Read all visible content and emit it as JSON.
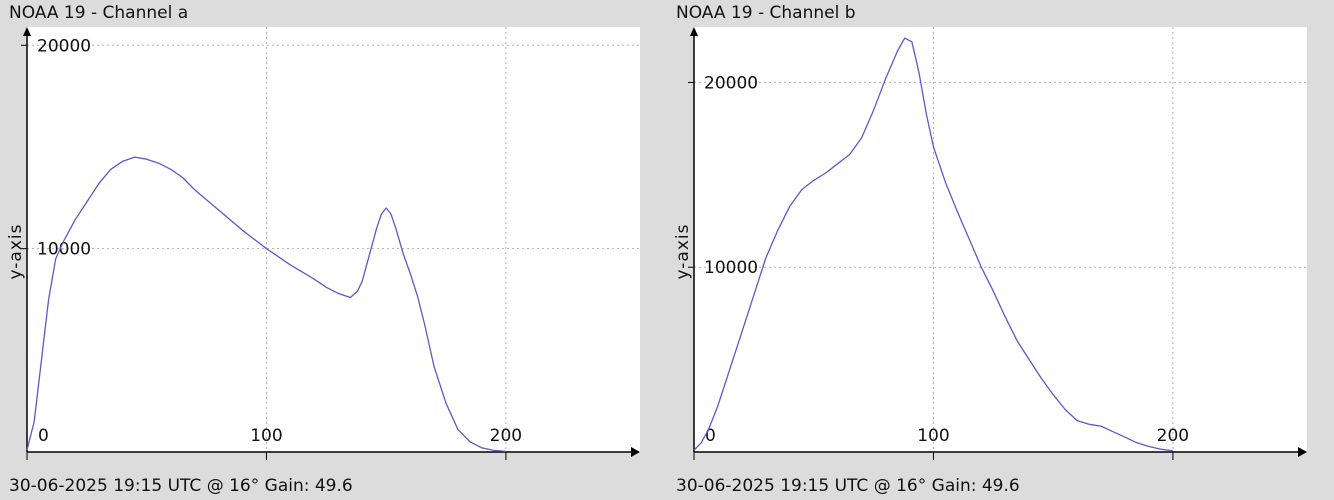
{
  "charts": [
    {
      "title": "NOAA 19 - Channel a",
      "footer": "30-06-2025 19:15 UTC @ 16° Gain: 49.6"
    },
    {
      "title": "NOAA 19 - Channel b",
      "footer": "30-06-2025 19:15 UTC @ 16° Gain: 49.6"
    }
  ],
  "colors": {
    "line": "#5a5acd",
    "grid": "#b0b0b0",
    "axis": "#000000",
    "plot_bg": "#ffffff"
  },
  "chart_data": [
    {
      "type": "line",
      "title": "NOAA 19 - Channel a",
      "xlabel": "",
      "ylabel": "y-axis",
      "xlim": [
        0,
        256
      ],
      "ylim": [
        0,
        20900
      ],
      "x_ticks": [
        0,
        100,
        200
      ],
      "y_ticks": [
        10000,
        20000
      ],
      "grid": true,
      "series": [
        {
          "x": [
            0,
            3,
            6,
            9,
            12,
            15,
            20,
            25,
            30,
            35,
            40,
            45,
            50,
            55,
            60,
            65,
            70,
            80,
            90,
            100,
            110,
            120,
            125,
            130,
            135,
            138,
            140,
            143,
            146,
            148,
            150,
            152,
            154,
            157,
            160,
            163,
            166,
            170,
            175,
            180,
            185,
            190,
            195,
            200
          ],
          "y": [
            100,
            1500,
            4500,
            7500,
            9500,
            10300,
            11400,
            12300,
            13200,
            13900,
            14300,
            14500,
            14400,
            14200,
            13900,
            13500,
            12900,
            11900,
            10900,
            10000,
            9200,
            8500,
            8100,
            7800,
            7600,
            7900,
            8400,
            9700,
            11000,
            11700,
            12000,
            11700,
            11000,
            9800,
            8800,
            7700,
            6300,
            4200,
            2400,
            1100,
            500,
            200,
            80,
            30
          ]
        }
      ]
    },
    {
      "type": "line",
      "title": "NOAA 19 - Channel b",
      "xlabel": "",
      "ylabel": "y-axis",
      "xlim": [
        0,
        256
      ],
      "ylim": [
        0,
        23000
      ],
      "x_ticks": [
        0,
        100,
        200
      ],
      "y_ticks": [
        10000,
        20000
      ],
      "grid": true,
      "series": [
        {
          "x": [
            0,
            3,
            6,
            10,
            15,
            20,
            25,
            30,
            35,
            40,
            45,
            50,
            55,
            60,
            65,
            70,
            75,
            80,
            85,
            88,
            91,
            94,
            97,
            100,
            105,
            110,
            115,
            120,
            125,
            130,
            135,
            140,
            145,
            150,
            155,
            160,
            165,
            170,
            175,
            180,
            185,
            190,
            195,
            200
          ],
          "y": [
            100,
            500,
            1200,
            2500,
            4500,
            6500,
            8500,
            10500,
            12000,
            13300,
            14200,
            14700,
            15100,
            15600,
            16100,
            17000,
            18500,
            20200,
            21700,
            22400,
            22200,
            20500,
            18300,
            16500,
            14600,
            13000,
            11500,
            10000,
            8700,
            7300,
            6000,
            5000,
            4000,
            3100,
            2300,
            1700,
            1500,
            1400,
            1100,
            800,
            500,
            300,
            150,
            60
          ]
        }
      ]
    }
  ]
}
